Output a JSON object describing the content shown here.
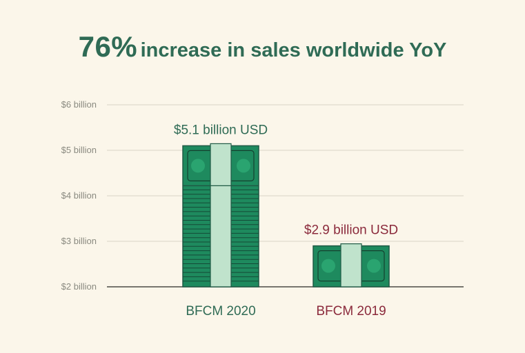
{
  "title": {
    "highlight": "76%",
    "rest": "increase in sales worldwide YoY"
  },
  "chart_data": {
    "type": "bar",
    "title": "76% increase in sales worldwide YoY",
    "categories": [
      "BFCM 2020",
      "BFCM 2019"
    ],
    "values": [
      5.1,
      2.9
    ],
    "data_labels": [
      "$5.1 billion USD",
      "$2.9 billion USD"
    ],
    "ylim": [
      2,
      6
    ],
    "yticks": [
      2,
      3,
      4,
      5,
      6
    ],
    "ytick_labels": [
      "$2 billion",
      "$3 billion",
      "$4 billion",
      "$5 billion",
      "$6 billion"
    ],
    "xlabel": "",
    "ylabel": "",
    "grid": true,
    "category_colors": [
      "#2f6b55",
      "#8b2a3c"
    ],
    "bar_color": "#1e8a5e",
    "band_color": "#c0e3cc"
  }
}
